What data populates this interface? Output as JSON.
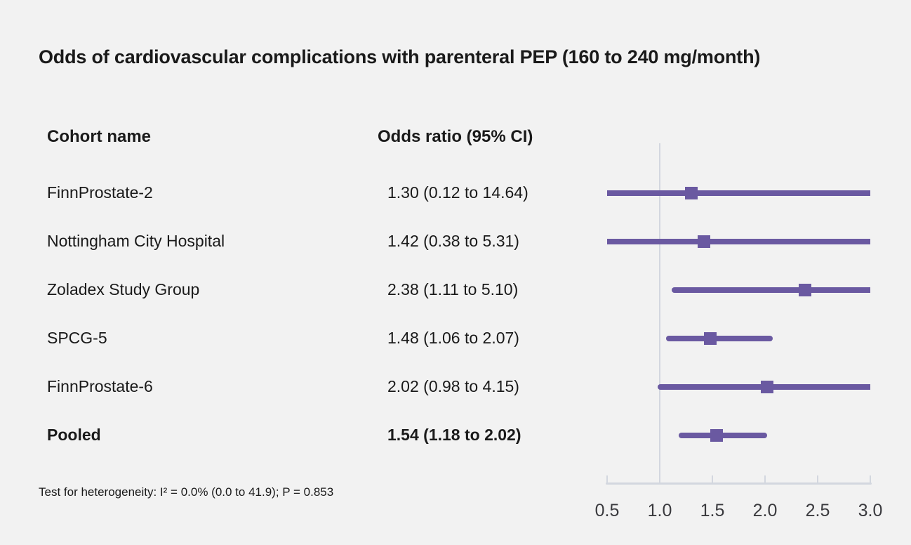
{
  "title": "Odds of cardiovascular complications with parenteral PEP (160 to 240 mg/month)",
  "columns": {
    "cohort": "Cohort name",
    "odds": "Odds ratio (95% CI)"
  },
  "footnote": "Test for heterogeneity: I² = 0.0% (0.0 to 41.9); P = 0.853",
  "colors": {
    "accent": "#6A59A1",
    "axis": "#D3D7DF",
    "background": "#F2F2F2",
    "text": "#1A1A1A",
    "tick_label": "#3A3A3E"
  },
  "chart_data": {
    "type": "forest",
    "title": "Odds of cardiovascular complications with parenteral PEP (160 to 240 mg/month)",
    "x_axis": {
      "ticks": [
        0.5,
        1.0,
        1.5,
        2.0,
        2.5,
        3.0
      ],
      "tick_labels": [
        "0.5",
        "1.0",
        "1.5",
        "2.0",
        "2.5",
        "3.0"
      ],
      "xlim": [
        0.5,
        3.0
      ],
      "reference_line": 1.0
    },
    "studies": [
      {
        "name": "FinnProstate-2",
        "or_label": "1.30 (0.12 to 14.64)",
        "or": 1.3,
        "ci_low": 0.12,
        "ci_high": 14.64,
        "pooled": false
      },
      {
        "name": "Nottingham City Hospital",
        "or_label": "1.42 (0.38 to 5.31)",
        "or": 1.42,
        "ci_low": 0.38,
        "ci_high": 5.31,
        "pooled": false
      },
      {
        "name": "Zoladex Study Group",
        "or_label": "2.38 (1.11 to 5.10)",
        "or": 2.38,
        "ci_low": 1.11,
        "ci_high": 5.1,
        "pooled": false
      },
      {
        "name": "SPCG-5",
        "or_label": "1.48 (1.06 to 2.07)",
        "or": 1.48,
        "ci_low": 1.06,
        "ci_high": 2.07,
        "pooled": false
      },
      {
        "name": "FinnProstate-6",
        "or_label": "2.02 (0.98 to 4.15)",
        "or": 2.02,
        "ci_low": 0.98,
        "ci_high": 4.15,
        "pooled": false
      },
      {
        "name": "Pooled",
        "or_label": "1.54 (1.18 to 2.02)",
        "or": 1.54,
        "ci_low": 1.18,
        "ci_high": 2.02,
        "pooled": true
      }
    ]
  }
}
